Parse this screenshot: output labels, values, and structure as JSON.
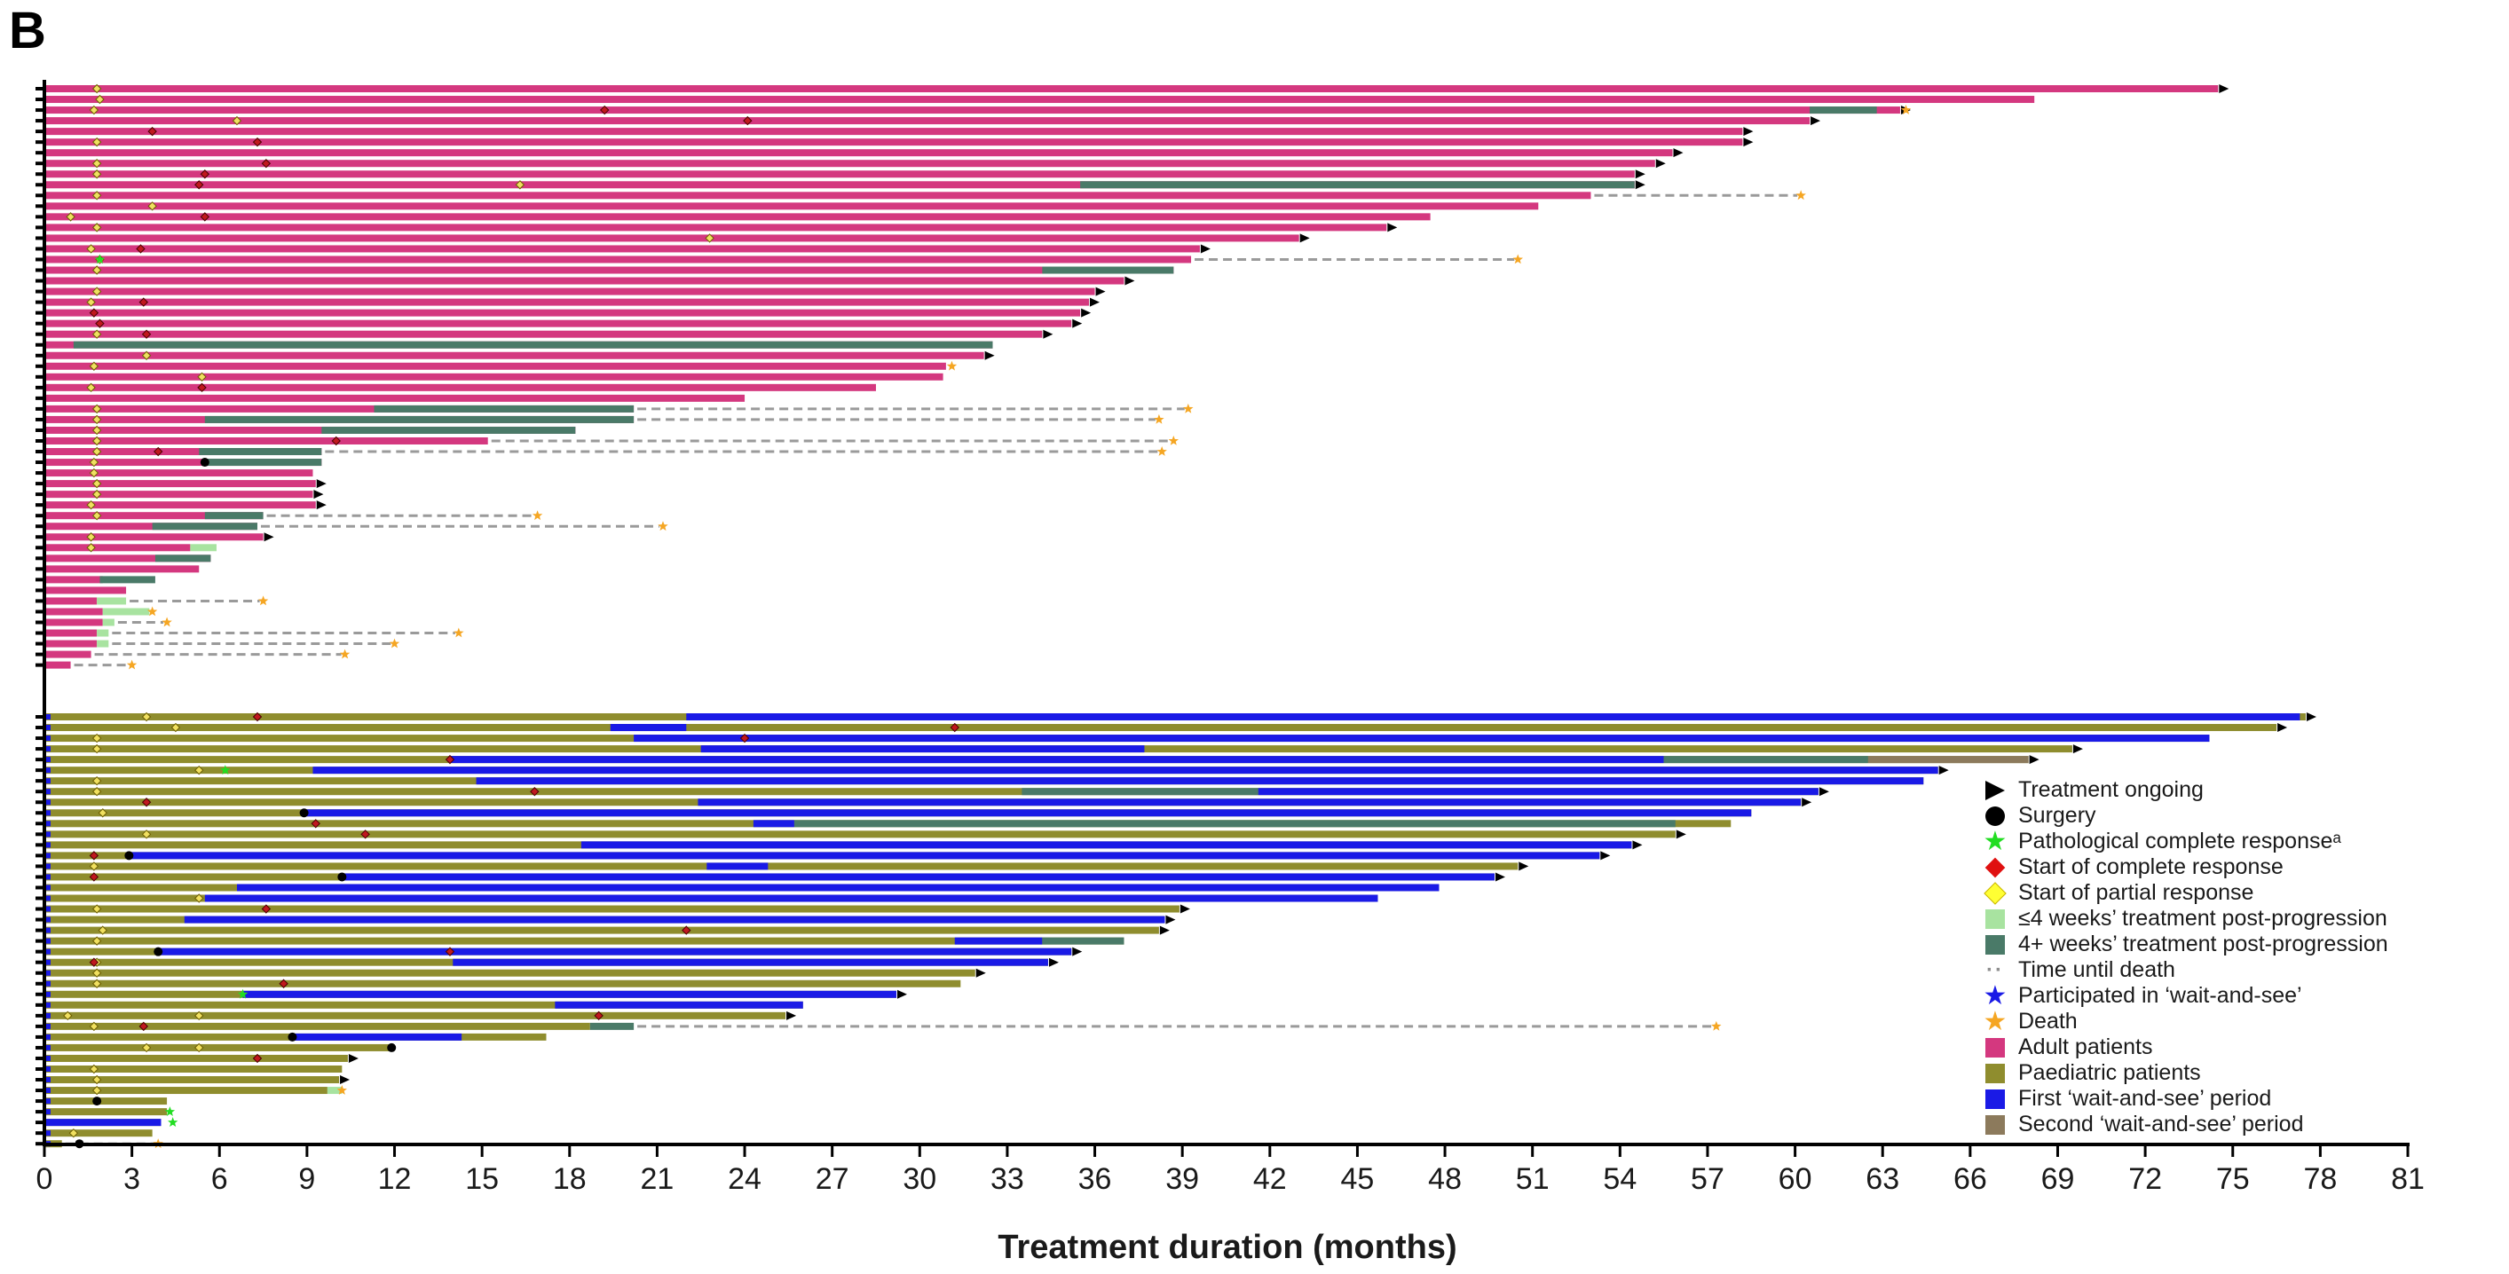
{
  "panel_label": "B",
  "colors": {
    "adult": "#d4387f",
    "paediatric": "#8f8d2e",
    "wait_first": "#1a1ae6",
    "wait_second": "#8c7a5c",
    "post_short": "#a8e3a0",
    "post_long": "#4a7a68",
    "death": "#f5a623",
    "partial": "#f0e060",
    "complete": "#c0181e",
    "pcr": "#22dd22",
    "dashed": "#9a9a9a"
  },
  "chart_data": {
    "type": "swimmer",
    "xlabel": "Treatment duration (months)",
    "xlim": [
      0,
      81
    ],
    "xticks": [
      0,
      3,
      6,
      9,
      12,
      15,
      18,
      21,
      24,
      27,
      30,
      33,
      36,
      39,
      42,
      45,
      48,
      51,
      54,
      57,
      60,
      63,
      66,
      69,
      72,
      75,
      78,
      81
    ],
    "adult": [
      {
        "end": 74.5,
        "ongoing": true,
        "pr": 1.8
      },
      {
        "end": 68.2,
        "pr": 1.9
      },
      {
        "end": 63.6,
        "ongoing": true,
        "post4": [
          60.5,
          62.8
        ],
        "dash_to": 63.8,
        "death": 63.8,
        "pr": 1.7,
        "cr": 19.2
      },
      {
        "end": 60.5,
        "ongoing": true,
        "pr": 6.6,
        "cr": 24.1
      },
      {
        "end": 58.2,
        "ongoing": true,
        "cr": 3.7
      },
      {
        "end": 58.2,
        "ongoing": true,
        "pr": 1.8,
        "cr": 7.3
      },
      {
        "end": 55.8,
        "ongoing": true
      },
      {
        "end": 55.2,
        "ongoing": true,
        "pr": 1.8,
        "cr": 7.6
      },
      {
        "end": 54.5,
        "ongoing": true,
        "pr": 1.8,
        "cr": 5.5
      },
      {
        "end": 54.5,
        "ongoing": true,
        "post4": [
          35.5,
          54.5
        ],
        "pr": 16.3,
        "cr": 5.3
      },
      {
        "end": 53.0,
        "dash_to": 60.2,
        "death": 60.2,
        "pr": 1.8
      },
      {
        "end": 51.2,
        "pr": 3.7
      },
      {
        "end": 47.5,
        "pr": 0.9,
        "cr": 5.5
      },
      {
        "end": 46.0,
        "ongoing": true,
        "pr": 1.8
      },
      {
        "end": 43.0,
        "ongoing": true,
        "pr": 22.8
      },
      {
        "end": 39.6,
        "ongoing": true,
        "pr": 1.6,
        "cr": 3.3
      },
      {
        "end": 39.3,
        "dash_to": 50.5,
        "death": 50.5,
        "pr": 1.9,
        "pcr": 1.9
      },
      {
        "end": 38.7,
        "post4": [
          34.2,
          38.7
        ],
        "pr": 1.8
      },
      {
        "end": 37.0,
        "ongoing": true
      },
      {
        "end": 36.0,
        "ongoing": true,
        "pr": 1.8
      },
      {
        "end": 35.8,
        "ongoing": true,
        "pr": 1.6,
        "cr": 3.4
      },
      {
        "end": 35.5,
        "ongoing": true,
        "cr": 1.7
      },
      {
        "end": 35.2,
        "ongoing": true,
        "cr": 1.9
      },
      {
        "end": 34.2,
        "ongoing": true,
        "pr": 1.8,
        "cr": 3.5
      },
      {
        "end": 32.5,
        "post4": [
          1.0,
          32.5
        ]
      },
      {
        "end": 32.2,
        "ongoing": true,
        "pr": 3.5
      },
      {
        "end": 30.9,
        "death": 31.1,
        "pr": 1.7
      },
      {
        "end": 30.8,
        "pr": 5.4
      },
      {
        "end": 28.5,
        "pr": 1.6,
        "cr": 5.4
      },
      {
        "end": 24.0
      },
      {
        "end": 20.2,
        "post4": [
          11.3,
          20.2
        ],
        "dash_to": 39.2,
        "death": 39.2,
        "pr": 1.8
      },
      {
        "end": 20.2,
        "post4": [
          5.5,
          20.2
        ],
        "dash_to": 38.2,
        "death": 38.2,
        "pr": 1.8
      },
      {
        "end": 18.2,
        "post4": [
          9.5,
          18.2
        ],
        "pr": 1.8
      },
      {
        "end": 15.2,
        "dash_to": 38.7,
        "death": 38.7,
        "pr": 1.8,
        "cr": 10.0
      },
      {
        "end": 9.5,
        "post4": [
          5.3,
          9.5
        ],
        "dash_to": 38.3,
        "death": 38.3,
        "pr": 1.8,
        "cr": 3.9
      },
      {
        "end": 9.5,
        "post4": [
          5.5,
          9.5
        ],
        "surgery": 5.5,
        "pr": 1.7
      },
      {
        "end": 9.2,
        "pr": 1.7
      },
      {
        "end": 9.3,
        "ongoing": true,
        "pr": 1.8
      },
      {
        "end": 9.2,
        "ongoing": true,
        "pr": 1.8
      },
      {
        "end": 9.3,
        "ongoing": true,
        "pr": 1.6
      },
      {
        "end": 7.5,
        "post4": [
          5.5,
          7.5
        ],
        "dash_to": 16.9,
        "death": 16.9,
        "pr": 1.8
      },
      {
        "end": 7.3,
        "post4": [
          3.7,
          7.3
        ],
        "dash_to": 21.2,
        "death": 21.2
      },
      {
        "end": 7.5,
        "ongoing": true,
        "pr": 1.6
      },
      {
        "end": 5.0,
        "post_short": [
          5.0,
          5.9
        ],
        "pr": 1.6
      },
      {
        "end": 5.7,
        "post4": [
          3.8,
          5.7
        ]
      },
      {
        "end": 5.3
      },
      {
        "end": 2.0,
        "post4": [
          1.9,
          3.8
        ]
      },
      {
        "end": 2.8
      },
      {
        "end": 1.8,
        "post_short": [
          1.8,
          2.8
        ],
        "dash_to": 7.5,
        "death": 7.5
      },
      {
        "end": 2.0,
        "post_short": [
          2.0,
          3.6
        ],
        "death": 3.7
      },
      {
        "end": 2.0,
        "post_short": [
          2.0,
          2.4
        ],
        "dash_to": 4.2,
        "death": 4.2
      },
      {
        "end": 1.8,
        "post_short": [
          1.8,
          2.2
        ],
        "dash_to": 14.2,
        "death": 14.2
      },
      {
        "end": 1.8,
        "post_short": [
          1.8,
          2.2
        ],
        "dash_to": 12.0,
        "death": 12.0
      },
      {
        "end": 1.6,
        "dash_to": 10.3,
        "death": 10.3
      },
      {
        "end": 0.9,
        "dash_to": 3.0,
        "death": 3.0
      }
    ],
    "paediatric": [
      {
        "end": 77.5,
        "ongoing": true,
        "wait1": [
          22.0,
          77.3
        ],
        "pr": 3.5,
        "cr": 7.3
      },
      {
        "end": 76.5,
        "ongoing": true,
        "wait1": [
          19.4,
          22.0
        ],
        "pr": 4.5,
        "cr": 31.2
      },
      {
        "end": 74.2,
        "wait1": [
          20.2,
          74.2
        ],
        "pr": 1.8,
        "cr": 24.0
      },
      {
        "end": 69.5,
        "ongoing": true,
        "wait1": [
          22.5,
          37.7
        ],
        "pr": 1.8
      },
      {
        "end": 68.0,
        "ongoing": true,
        "post4": [
          55.5,
          62.5
        ],
        "wait2": [
          62.5,
          68.0
        ],
        "wait1": [
          13.9,
          55.5
        ],
        "cr": 13.9
      },
      {
        "end": 64.9,
        "ongoing": true,
        "wait1": [
          9.2,
          64.9
        ],
        "pr": 5.3,
        "pcr": 6.2
      },
      {
        "end": 64.4,
        "wait1": [
          14.8,
          64.4
        ],
        "pr": 1.8
      },
      {
        "end": 60.8,
        "ongoing": true,
        "post4": [
          33.5,
          41.6
        ],
        "wait1": [
          41.6,
          60.8
        ],
        "cr": 16.8,
        "pr": 1.8
      },
      {
        "end": 60.2,
        "ongoing": true,
        "wait1": [
          22.4,
          60.2
        ],
        "cr": 3.5
      },
      {
        "end": 58.5,
        "wait1": [
          8.9,
          58.5
        ],
        "surgery": 8.9,
        "pr": 2.0
      },
      {
        "end": 57.8,
        "wait1": [
          24.3,
          25.7
        ],
        "post4": [
          25.7,
          55.9
        ],
        "cr": 9.3
      },
      {
        "end": 55.9,
        "ongoing": true,
        "pr": 3.5,
        "cr": 11.0
      },
      {
        "end": 54.4,
        "ongoing": true,
        "wait1": [
          18.4,
          54.4
        ]
      },
      {
        "end": 53.3,
        "ongoing": true,
        "wait1": [
          2.9,
          53.3
        ],
        "surgery": 2.9,
        "cr": 1.7
      },
      {
        "end": 50.5,
        "ongoing": true,
        "wait1": [
          22.7,
          24.8
        ],
        "pr": 1.7
      },
      {
        "end": 49.7,
        "ongoing": true,
        "wait1": [
          10.2,
          49.7
        ],
        "surgery": 10.2,
        "cr": 1.7
      },
      {
        "end": 47.8,
        "wait1": [
          6.6,
          47.8
        ]
      },
      {
        "end": 45.7,
        "wait1": [
          5.5,
          45.7
        ],
        "pr": 5.3
      },
      {
        "end": 38.9,
        "ongoing": true,
        "cr": 7.6,
        "pr": 1.8
      },
      {
        "end": 38.4,
        "ongoing": true,
        "wait1": [
          4.8,
          38.4
        ]
      },
      {
        "end": 38.2,
        "ongoing": true,
        "cr": 22.0,
        "pr": 2.0
      },
      {
        "end": 37.0,
        "post4": [
          34.2,
          37.0
        ],
        "wait1": [
          31.2,
          34.2
        ],
        "pr": 1.8
      },
      {
        "end": 35.2,
        "ongoing": true,
        "wait1": [
          3.9,
          35.2
        ],
        "surgery": 3.9,
        "cr": 13.9
      },
      {
        "end": 34.4,
        "ongoing": true,
        "wait1": [
          14.0,
          34.4
        ],
        "cr": 1.7,
        "pr": 1.8
      },
      {
        "end": 31.9,
        "ongoing": true,
        "pr": 1.8
      },
      {
        "end": 31.4,
        "cr": 8.2,
        "pr": 1.8
      },
      {
        "end": 29.2,
        "ongoing": true,
        "wait1": [
          6.8,
          29.2
        ],
        "pcr": 6.8
      },
      {
        "end": 26.0,
        "wait1": [
          17.5,
          26.0
        ]
      },
      {
        "end": 25.4,
        "ongoing": true,
        "pr": 5.3,
        "cr": 19.0,
        "pr2": 0.8
      },
      {
        "end": 18.7,
        "post4": [
          18.7,
          20.2
        ],
        "dash_to": 57.3,
        "death": 57.3,
        "cr": 3.4,
        "pr": 1.7
      },
      {
        "end": 17.2,
        "wait1": [
          8.5,
          14.3
        ],
        "surgery": 8.5
      },
      {
        "end": 11.9,
        "surgery": 11.9,
        "pr": 5.3,
        "pr2": 3.5
      },
      {
        "end": 10.4,
        "ongoing": true,
        "cr": 7.3
      },
      {
        "end": 10.2,
        "pr": 1.7
      },
      {
        "end": 10.1,
        "ongoing": true,
        "pr": 1.8
      },
      {
        "end": 9.7,
        "post_short": [
          9.7,
          10.2
        ],
        "death": 10.2,
        "pr": 1.8
      },
      {
        "end": 4.2,
        "surgery": 1.8
      },
      {
        "end": 4.2,
        "pcr": 4.3
      },
      {
        "end": 4.0,
        "wait1": [
          0.0,
          4.0
        ],
        "pcr": 4.4
      },
      {
        "end": 3.7,
        "pr": 1.0
      },
      {
        "end": 0.6,
        "dash_to": 3.9,
        "death": 3.9,
        "surgery": 1.2
      }
    ]
  },
  "legend": [
    {
      "key": "treatment_ongoing",
      "label": "Treatment ongoing"
    },
    {
      "key": "surgery",
      "label": "Surgery"
    },
    {
      "key": "pcr",
      "label": "Pathological complete responseᵃ"
    },
    {
      "key": "complete",
      "label": "Start of complete response"
    },
    {
      "key": "partial",
      "label": "Start of partial response"
    },
    {
      "key": "post_short",
      "label": "≤4 weeks’ treatment post-progression"
    },
    {
      "key": "post_long",
      "label": "4+ weeks’ treatment post-progression"
    },
    {
      "key": "time_until_death",
      "label": "Time until death"
    },
    {
      "key": "wait_and_see",
      "label": "Participated in ‘wait-and-see’"
    },
    {
      "key": "death",
      "label": "Death"
    },
    {
      "key": "adult",
      "label": "Adult patients"
    },
    {
      "key": "paediatric",
      "label": "Paediatric patients"
    },
    {
      "key": "wait_first",
      "label": "First ‘wait-and-see’ period"
    },
    {
      "key": "wait_second",
      "label": "Second ‘wait-and-see’ period"
    }
  ]
}
